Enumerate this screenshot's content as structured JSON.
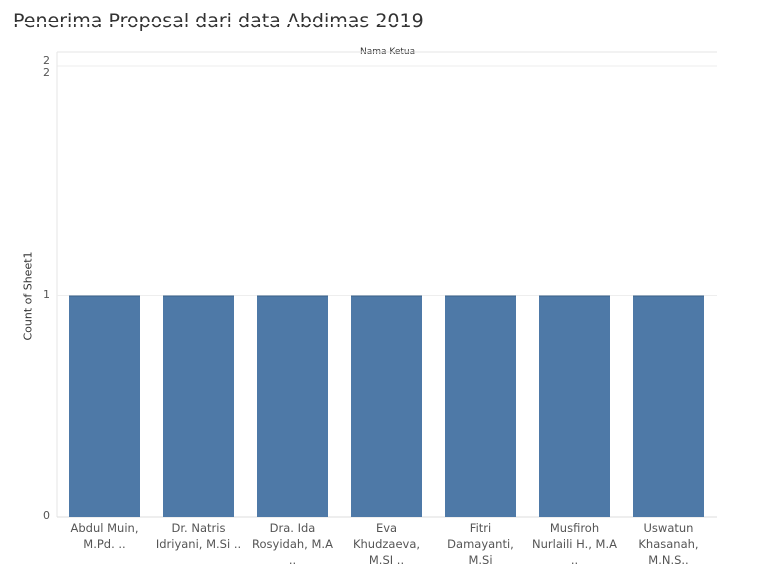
{
  "title": "Penerima Proposal dari data Abdimas 2019",
  "column_header": "Nama Ketua",
  "chart_data": {
    "type": "bar",
    "title": "Penerima Proposal dari data Abdimas 2019",
    "xlabel": "",
    "ylabel": "Count of Sheet1",
    "ylim": [
      0,
      2
    ],
    "yticks": [
      "0",
      "1",
      "2"
    ],
    "categories": [
      "Abdul Muin, M.Pd. ..",
      "Dr. Natris Idriyani, M.Si ..",
      "Dra. Ida Rosyidah, M.A ..",
      "Eva Khudzaeva, M.SI ..",
      "Fitri Damayanti, M.Si",
      "Musfiroh Nurlaili H., M.A ..",
      "Uswatun Khasanah, M.N.S.."
    ],
    "values": [
      1,
      1,
      1,
      1,
      1,
      1,
      1
    ],
    "bar_color": "#4e79a7",
    "grid": true
  }
}
